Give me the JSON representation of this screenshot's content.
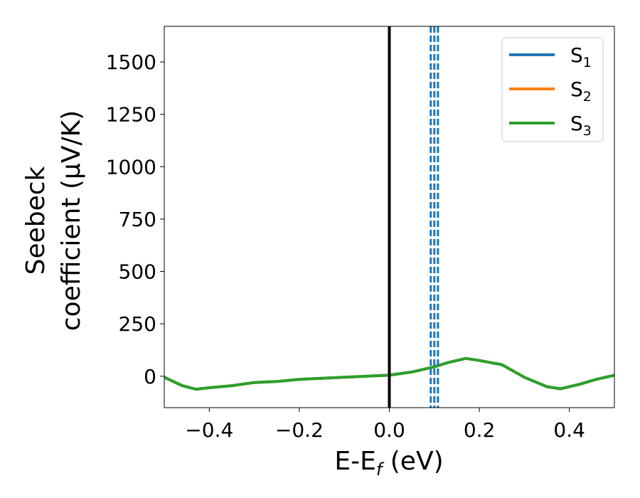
{
  "chart_data": {
    "type": "line",
    "xlabel": {
      "main": "E-E",
      "sub": "f",
      "unit": " (eV)"
    },
    "ylabel": {
      "line1": "Seebeck",
      "line2": "coefficient  (μV/K)"
    },
    "xlim": [
      -0.5,
      0.5
    ],
    "ylim": [
      -150,
      1670
    ],
    "xticks": [
      -0.4,
      -0.2,
      0.0,
      0.2,
      0.4
    ],
    "xtick_labels": [
      "−0.4",
      "−0.2",
      "0.0",
      "0.2",
      "0.4"
    ],
    "yticks": [
      0,
      250,
      500,
      750,
      1000,
      1250,
      1500
    ],
    "ytick_labels": [
      "0",
      "250",
      "500",
      "750",
      "1000",
      "1250",
      "1500"
    ],
    "grid": false,
    "legend_position": "top-right",
    "colors": {
      "s1": "#1f77b4",
      "s2": "#ff7f0e",
      "s3": "#2ca02c",
      "fermi_line": "#000000"
    },
    "vertical_lines": [
      {
        "x": 0.0,
        "style": "solid",
        "color": "#000000"
      },
      {
        "x": 0.092,
        "style": "dashed",
        "color": "#1f77b4"
      },
      {
        "x": 0.1,
        "style": "dashed",
        "color": "#1f77b4"
      },
      {
        "x": 0.108,
        "style": "dashed",
        "color": "#1f77b4"
      }
    ],
    "x": [
      -0.5,
      -0.46,
      -0.43,
      -0.4,
      -0.35,
      -0.3,
      -0.25,
      -0.2,
      -0.15,
      -0.1,
      -0.05,
      0.0,
      0.05,
      0.1,
      0.13,
      0.17,
      0.2,
      0.25,
      0.3,
      0.35,
      0.38,
      0.42,
      0.46,
      0.5
    ],
    "series": [
      {
        "name_main": "S",
        "name_sub": "1",
        "color": "#1f77b4",
        "values": [
          -5,
          -45,
          -62,
          -55,
          -45,
          -30,
          -25,
          -15,
          -10,
          -5,
          0,
          5,
          20,
          45,
          65,
          85,
          75,
          55,
          -5,
          -50,
          -60,
          -40,
          -15,
          5
        ]
      },
      {
        "name_main": "S",
        "name_sub": "2",
        "color": "#ff7f0e",
        "values": [
          -5,
          -45,
          -62,
          -55,
          -45,
          -30,
          -25,
          -15,
          -10,
          -5,
          0,
          5,
          20,
          45,
          65,
          85,
          75,
          55,
          -5,
          -50,
          -60,
          -40,
          -15,
          5
        ]
      },
      {
        "name_main": "S",
        "name_sub": "3",
        "color": "#2ca02c",
        "values": [
          -5,
          -45,
          -62,
          -55,
          -45,
          -30,
          -25,
          -15,
          -10,
          -5,
          0,
          5,
          20,
          45,
          65,
          85,
          75,
          55,
          -5,
          -50,
          -60,
          -40,
          -15,
          5
        ]
      }
    ]
  }
}
